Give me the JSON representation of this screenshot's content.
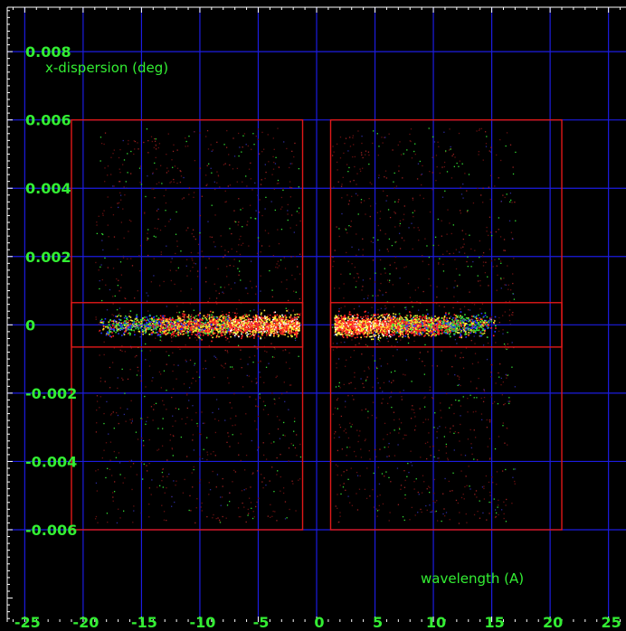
{
  "chart_data": {
    "type": "scatter",
    "xlabel": "wavelength (A)",
    "ylabel": "x-dispersion (deg)",
    "xlim": [
      -26.5,
      26.5
    ],
    "ylim": [
      -0.0087,
      0.0093
    ],
    "x_ticks": [
      -25,
      -20,
      -15,
      -10,
      -5,
      0,
      5,
      10,
      15,
      20,
      25
    ],
    "x_tick_labels": [
      "-25",
      "-20",
      "-15",
      "-10",
      "-5",
      "0",
      "5",
      "10",
      "15",
      "20",
      "25"
    ],
    "y_ticks": [
      0.008,
      0.006,
      0.004,
      0.002,
      0,
      -0.002,
      -0.004,
      -0.006
    ],
    "y_tick_labels": [
      "0.008",
      "0.006",
      "0.004",
      "0.002",
      "0",
      "-0.002",
      "-0.004",
      "-0.006"
    ],
    "grid": true,
    "regions": [
      {
        "x": [
          -21,
          -1.2
        ],
        "y": [
          -0.006,
          0.006
        ]
      },
      {
        "x": [
          -21,
          -1.2
        ],
        "y": [
          -0.00065,
          0.00065
        ]
      },
      {
        "x": [
          1.2,
          21
        ],
        "y": [
          -0.006,
          0.006
        ]
      },
      {
        "x": [
          1.2,
          21
        ],
        "y": [
          -0.00065,
          0.00065
        ]
      }
    ],
    "series": [
      {
        "x_range": [
          -18.7,
          -1.5
        ],
        "y_center": 0,
        "y_band": 0.0005,
        "peak": "right"
      },
      {
        "x_range": [
          1.5,
          15.3
        ],
        "y_center": 0,
        "y_band": 0.0005,
        "peak": "left"
      }
    ],
    "colors": {
      "background": "#000000",
      "grid": "#1c1ce0",
      "region": "#e01818",
      "labels": "#33ee33",
      "points": [
        "#ff2222",
        "#ffee33",
        "#33dd33",
        "#2233ff",
        "#ffffff"
      ]
    }
  }
}
